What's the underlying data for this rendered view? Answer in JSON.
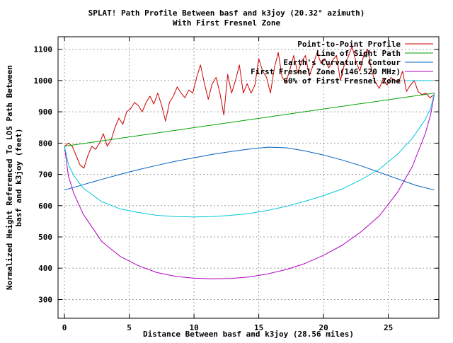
{
  "chart_data": {
    "type": "line",
    "title": "SPLAT! Path Profile Between basf and k3joy (20.32° azimuth)",
    "subtitle": "With First Fresnel Zone",
    "xlabel": "Distance Between basf and k3joy (28.56 miles)",
    "ylabel_line1": "Normalized Height Referenced To LOS Path Between",
    "ylabel_line2": "basf and k3joy (feet)",
    "xlim": [
      -0.5,
      28.9
    ],
    "ylim": [
      240,
      1140
    ],
    "x_ticks": [
      0,
      5,
      10,
      15,
      20,
      25
    ],
    "y_ticks": [
      300,
      400,
      500,
      600,
      700,
      800,
      900,
      1000,
      1100
    ],
    "grid": true,
    "legend_position": "top-right",
    "series": [
      {
        "name": "Point-to-Point Profile",
        "color": "#cc0000",
        "x": [
          0,
          0.3,
          0.6,
          0.9,
          1.2,
          1.5,
          1.8,
          2.1,
          2.4,
          2.7,
          3.0,
          3.3,
          3.6,
          3.9,
          4.2,
          4.5,
          4.8,
          5.1,
          5.4,
          5.7,
          6.0,
          6.3,
          6.6,
          6.9,
          7.2,
          7.5,
          7.8,
          8.1,
          8.4,
          8.7,
          9.0,
          9.3,
          9.6,
          9.9,
          10.2,
          10.5,
          10.8,
          11.1,
          11.4,
          11.7,
          12.0,
          12.3,
          12.6,
          12.9,
          13.2,
          13.5,
          13.8,
          14.1,
          14.4,
          14.7,
          15.0,
          15.3,
          15.6,
          15.9,
          16.2,
          16.5,
          16.8,
          17.1,
          17.4,
          17.7,
          18.0,
          18.3,
          18.6,
          18.9,
          19.2,
          19.5,
          19.8,
          20.1,
          20.4,
          20.7,
          21.0,
          21.3,
          21.6,
          21.9,
          22.2,
          22.5,
          22.8,
          23.1,
          23.4,
          23.7,
          24.0,
          24.3,
          24.6,
          24.9,
          25.2,
          25.5,
          25.8,
          26.1,
          26.4,
          26.7,
          27.0,
          27.3,
          27.6,
          27.9,
          28.2,
          28.56
        ],
        "y": [
          790,
          800,
          790,
          760,
          730,
          720,
          760,
          790,
          780,
          800,
          830,
          790,
          810,
          850,
          880,
          860,
          900,
          910,
          930,
          920,
          900,
          930,
          950,
          925,
          960,
          920,
          870,
          930,
          950,
          980,
          960,
          945,
          970,
          960,
          1010,
          1050,
          990,
          940,
          990,
          1010,
          960,
          890,
          1020,
          960,
          1000,
          1050,
          960,
          990,
          960,
          985,
          1070,
          1030,
          1010,
          960,
          1040,
          1090,
          1010,
          995,
          1035,
          1080,
          1025,
          1060,
          1080,
          1015,
          1050,
          1090,
          1055,
          1070,
          1040,
          1065,
          1080,
          1000,
          1050,
          1075,
          1110,
          1060,
          1030,
          1080,
          1100,
          1035,
          995,
          975,
          1005,
          985,
          1010,
          1000,
          995,
          1030,
          965,
          985,
          1000,
          965,
          955,
          960,
          945,
          955
        ]
      },
      {
        "name": "Line of Sight Path",
        "color": "#00a000",
        "x": [
          0,
          28.56
        ],
        "y": [
          790,
          960
        ]
      },
      {
        "name": "Earth's Curvature Contour",
        "color": "#0060c0",
        "x": [
          0,
          1.43,
          2.86,
          4.28,
          5.71,
          7.14,
          8.57,
          10.0,
          11.42,
          12.85,
          14.28,
          15.71,
          17.14,
          18.56,
          19.99,
          21.42,
          22.85,
          24.28,
          25.7,
          27.13,
          28.56
        ],
        "y": [
          650,
          667,
          684,
          700,
          715,
          729,
          742,
          753,
          764,
          773,
          781,
          787,
          785,
          775,
          762,
          746,
          728,
          707,
          686,
          665,
          650
        ]
      },
      {
        "name": "First Fresnel Zone (146.520 MHz)",
        "color": "#b000c0",
        "x": [
          0,
          0.29,
          0.71,
          1.43,
          2.86,
          4.28,
          5.71,
          7.14,
          8.57,
          10.0,
          11.42,
          12.85,
          14.28,
          15.71,
          17.14,
          18.56,
          19.99,
          21.42,
          22.85,
          24.28,
          25.7,
          26.85,
          27.85,
          28.27,
          28.56
        ],
        "y": [
          790,
          696,
          640,
          574,
          486,
          438,
          408,
          386,
          374,
          368,
          366,
          367,
          372,
          382,
          396,
          415,
          441,
          473,
          515,
          566,
          642,
          725,
          830,
          892,
          960
        ]
      },
      {
        "name": "60% of First Fresnel Zone",
        "color": "#00c8d8",
        "x": [
          0,
          0.29,
          0.71,
          1.43,
          2.86,
          4.28,
          5.71,
          7.14,
          8.57,
          10.0,
          11.42,
          12.85,
          14.28,
          15.71,
          17.14,
          18.56,
          19.99,
          21.42,
          22.85,
          24.28,
          25.7,
          26.85,
          27.85,
          28.27,
          28.56
        ],
        "y": [
          790,
          733,
          697,
          657,
          613,
          590,
          578,
          569,
          565,
          564,
          565,
          569,
          575,
          585,
          598,
          614,
          632,
          653,
          682,
          716,
          764,
          815,
          875,
          912,
          960
        ]
      }
    ]
  }
}
